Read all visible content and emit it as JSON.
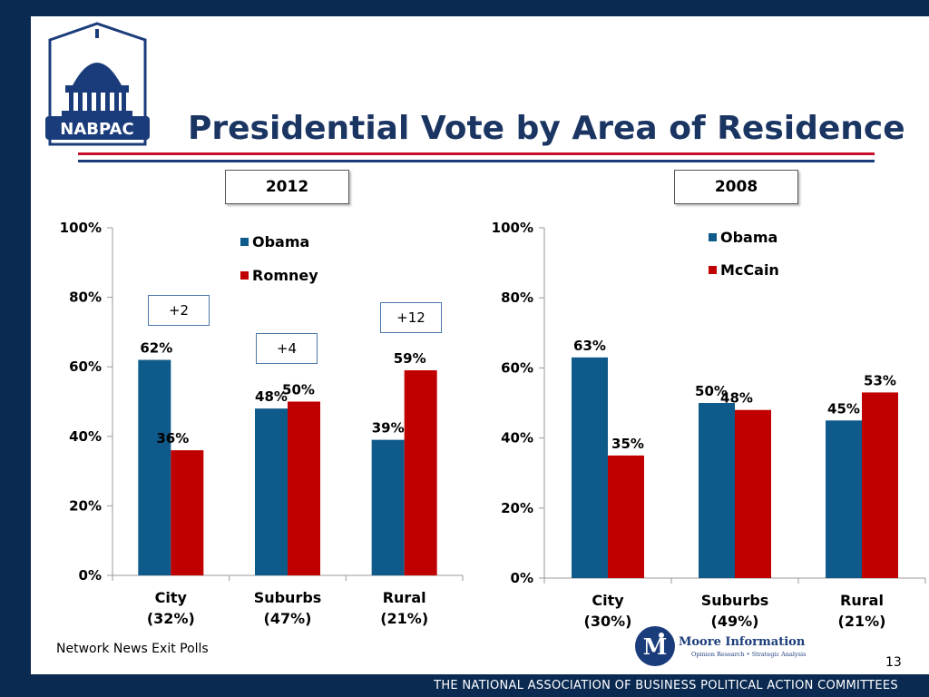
{
  "title": "Presidential Vote by Area of Residence",
  "logo": {
    "text": "NABPAC"
  },
  "footer": "THE NATIONAL ASSOCIATION OF BUSINESS POLITICAL ACTION COMMITTEES",
  "source": "Network News Exit Polls",
  "page_number": "13",
  "moore": {
    "name": "Moore Information",
    "tagline": "Opinion Research • Strategic Analysis"
  },
  "colors": {
    "blue": "#0e5a8a",
    "red": "#c00000",
    "navy": "#0b2a52",
    "title": "#1b3563"
  },
  "chart_data": [
    {
      "type": "bar",
      "year_label": "2012",
      "categories": [
        "City\n(32%)",
        "Suburbs\n(47%)",
        "Rural\n(21%)"
      ],
      "series": [
        {
          "name": "Obama",
          "values": [
            62,
            48,
            39
          ],
          "labels": [
            "62%",
            "48%",
            "39%"
          ],
          "color": "#0e5a8a"
        },
        {
          "name": "Romney",
          "values": [
            36,
            50,
            59
          ],
          "labels": [
            "36%",
            "50%",
            "59%"
          ],
          "color": "#c00000"
        }
      ],
      "y_ticks": [
        "0%",
        "20%",
        "40%",
        "60%",
        "80%",
        "100%"
      ],
      "ylim": [
        0,
        100
      ],
      "annotations": [
        "+2",
        "+4",
        "+12"
      ],
      "legend": "top"
    },
    {
      "type": "bar",
      "year_label": "2008",
      "categories": [
        "City\n(30%)",
        "Suburbs\n(49%)",
        "Rural\n(21%)"
      ],
      "series": [
        {
          "name": "Obama",
          "values": [
            63,
            50,
            45
          ],
          "labels": [
            "63%",
            "50%",
            "45%"
          ],
          "color": "#0e5a8a"
        },
        {
          "name": "McCain",
          "values": [
            35,
            48,
            53
          ],
          "labels": [
            "35%",
            "48%",
            "53%"
          ],
          "color": "#c00000"
        }
      ],
      "y_ticks": [
        "0%",
        "20%",
        "40%",
        "60%",
        "80%",
        "100%"
      ],
      "ylim": [
        0,
        100
      ],
      "legend": "top"
    }
  ]
}
